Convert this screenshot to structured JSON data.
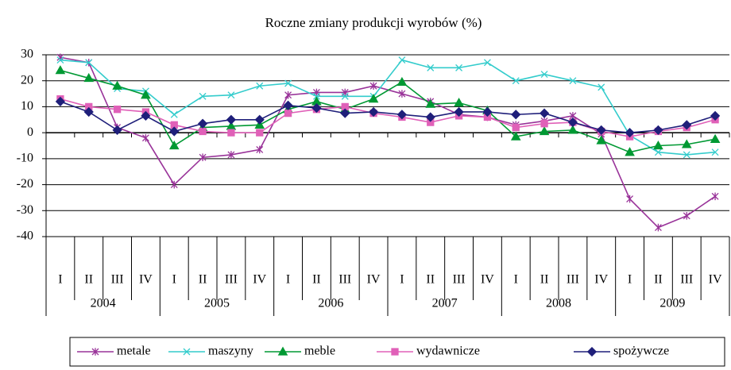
{
  "chart_data": {
    "type": "line",
    "title": "Roczne zmiany produkcji wyrobów (%)",
    "categories": [
      "I",
      "II",
      "III",
      "IV",
      "I",
      "II",
      "III",
      "IV",
      "I",
      "II",
      "III",
      "IV",
      "I",
      "II",
      "III",
      "IV",
      "I",
      "II",
      "III",
      "IV",
      "I",
      "II",
      "III",
      "IV"
    ],
    "years": [
      "2004",
      "2005",
      "2006",
      "2007",
      "2008",
      "2009"
    ],
    "ylim": [
      -40,
      30
    ],
    "yticks": [
      -40,
      -30,
      -20,
      -10,
      0,
      10,
      20,
      30
    ],
    "grid": true,
    "series": [
      {
        "name": "metale",
        "color": "#993399",
        "marker": "star",
        "values": [
          29,
          27,
          2,
          -2,
          -20,
          -9.5,
          -8.5,
          -6.5,
          14.5,
          15.5,
          15.5,
          18,
          15,
          12,
          7,
          6,
          3,
          4.5,
          6.5,
          -0.5,
          -25.5,
          -36.5,
          -32,
          -24.5
        ]
      },
      {
        "name": "maszyny",
        "color": "#33cccc",
        "marker": "x",
        "values": [
          28,
          27,
          17,
          16,
          7,
          14,
          14.5,
          18,
          19,
          14,
          14,
          14,
          28,
          25,
          25,
          27,
          20,
          22.5,
          20,
          17.5,
          -1,
          -7.5,
          -8.5,
          -7.5
        ]
      },
      {
        "name": "meble",
        "color": "#009933",
        "marker": "triangle",
        "values": [
          24,
          21,
          18,
          14.5,
          -5,
          2,
          2.5,
          3,
          9,
          12,
          9,
          13,
          19.5,
          11,
          11.5,
          8.5,
          -1.5,
          0.5,
          1,
          -3,
          -7.5,
          -5,
          -4.5,
          -2.5
        ]
      },
      {
        "name": "wydawnicze",
        "color": "#e060b8",
        "marker": "square",
        "values": [
          13,
          10,
          9,
          8,
          3,
          0.5,
          0,
          0,
          7.5,
          9,
          10,
          7.5,
          6,
          4,
          6.5,
          6,
          2,
          3.5,
          4,
          0.5,
          -1.5,
          0.5,
          2,
          5
        ]
      },
      {
        "name": "spożywcze",
        "color": "#1f1f7a",
        "marker": "diamond",
        "values": [
          12,
          8,
          1,
          6.5,
          0.5,
          3.5,
          5,
          5,
          10.5,
          9.5,
          7.5,
          8,
          7,
          6,
          8,
          8,
          7,
          7.5,
          4,
          1,
          0,
          1,
          3,
          6.5
        ]
      }
    ]
  }
}
